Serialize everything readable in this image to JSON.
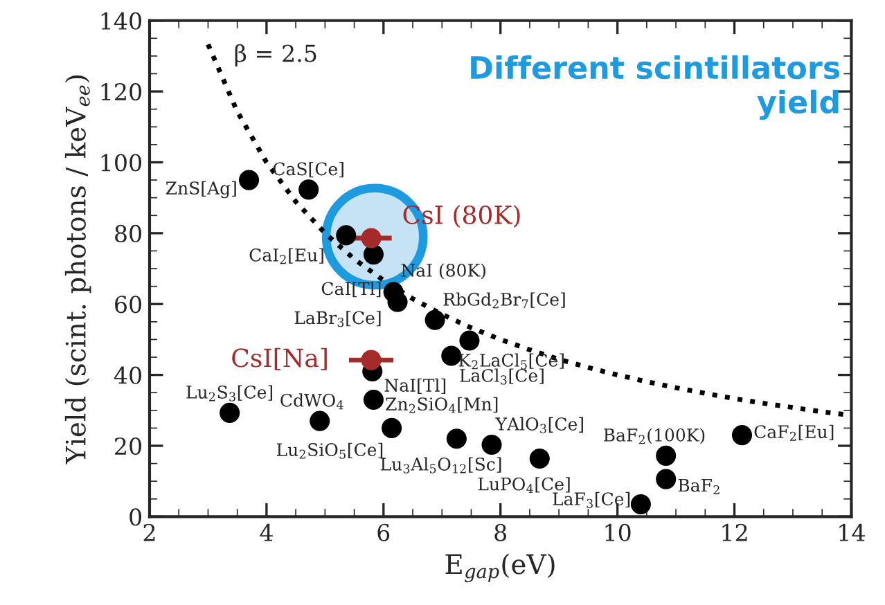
{
  "chart_data": {
    "type": "scatter",
    "xlabel": "E$_{gap}$(eV)",
    "ylabel": "Yield (scint. photons / keV$_{ee}$)",
    "xlim": [
      2,
      14
    ],
    "xticks": [
      2,
      4,
      6,
      8,
      10,
      12,
      14
    ],
    "ylim": [
      0,
      140
    ],
    "yticks": [
      0,
      20,
      40,
      60,
      80,
      100,
      120,
      140
    ],
    "grid": false,
    "legend": false,
    "marker": "circle",
    "series": [
      {
        "type": "line",
        "color": "#000000",
        "line_style": "dotted",
        "marker": "none",
        "x": [
          3,
          3.5,
          4,
          4.5,
          5,
          5.5,
          6,
          6.5,
          7,
          7.5,
          8,
          8.5,
          9,
          9.5,
          10,
          10.5,
          11,
          11.5,
          12,
          12.5,
          13,
          13.5,
          14
        ],
        "values": [
          133.3,
          114.3,
          100,
          88.9,
          80,
          72.7,
          66.7,
          61.5,
          57.1,
          53.3,
          50,
          47.1,
          44.4,
          42.1,
          40,
          38.1,
          36.4,
          34.8,
          33.3,
          32,
          30.8,
          29.6,
          28.6
        ]
      },
      {
        "type": "scatter",
        "color": "#000000",
        "x": [
          3.7,
          4.72,
          5.36,
          5.83,
          6.17,
          6.24,
          6.88,
          7.47,
          7.16,
          5.81,
          5.83,
          3.37,
          4.91,
          6.14,
          7.25,
          7.85,
          8.67,
          10.83,
          10.83,
          10.4,
          12.13
        ],
        "values": [
          95,
          92.3,
          79.4,
          74,
          63.4,
          60.6,
          55.5,
          49.7,
          45.4,
          41,
          33,
          29.3,
          27,
          25,
          22,
          20.3,
          16.4,
          17.2,
          10.6,
          3.5,
          23
        ]
      },
      {
        "type": "scatter",
        "name": "CsI (80K)",
        "color": "#a52a2a",
        "x": [
          5.79
        ],
        "values": [
          78.6
        ],
        "xerrors": [
          0.35
        ]
      },
      {
        "type": "scatter",
        "name": "CsI[Na]",
        "color": "#a52a2a",
        "x": [
          5.79
        ],
        "values": [
          44.2
        ],
        "xerrors": [
          0.38
        ]
      }
    ],
    "annotations": [
      {
        "text": "ZnS[Ag]",
        "x": 3.7,
        "y": 95
      },
      {
        "text": "CaS[Ce]",
        "x": 4.72,
        "y": 92.3
      },
      {
        "text": "CaI$_{2}$[Eu]",
        "x": 5.36,
        "y": 79.4
      },
      {
        "text": "NaI (80K)",
        "x": 5.83,
        "y": 74
      },
      {
        "text": "CaI[Tl]",
        "x": 6.17,
        "y": 63.4
      },
      {
        "text": "LaBr$_{3}$[Ce]",
        "x": 6.24,
        "y": 60.6
      },
      {
        "text": "RbGd$_{2}$Br$_{7}$[Ce]",
        "x": 6.88,
        "y": 55.5
      },
      {
        "text": "K$_{2}$LaCl$_{5}$[Ce]",
        "x": 7.47,
        "y": 49.7
      },
      {
        "text": "LaCl$_{3}$[Ce]",
        "x": 7.16,
        "y": 45.4
      },
      {
        "text": "NaI[Tl]",
        "x": 5.81,
        "y": 41
      },
      {
        "text": "Zn$_{2}$SiO$_{4}$[Mn]",
        "x": 5.83,
        "y": 33
      },
      {
        "text": "Lu$_{2}$S$_{3}$[Ce]",
        "x": 3.37,
        "y": 29.3
      },
      {
        "text": "CdWO$_{4}$",
        "x": 4.91,
        "y": 27
      },
      {
        "text": "Lu$_{2}$SiO$_{5}$[Ce]",
        "x": 6.14,
        "y": 25
      },
      {
        "text": "Lu$_{3}$Al$_{5}$O$_{12}$[Sc]",
        "x": 7.25,
        "y": 22
      },
      {
        "text": "YAlO$_{3}$[Ce]",
        "x": 7.85,
        "y": 20.3
      },
      {
        "text": "LuPO$_{4}$[Ce]",
        "x": 8.67,
        "y": 16.4
      },
      {
        "text": "BaF$_{2}$(100K)",
        "x": 10.83,
        "y": 17.2
      },
      {
        "text": "BaF$_{2}$",
        "x": 10.83,
        "y": 10.6
      },
      {
        "text": "LaF$_{3}$[Ce]",
        "x": 10.4,
        "y": 3.5
      },
      {
        "text": "CaF$_{2}$[Eu]",
        "x": 12.13,
        "y": 23
      },
      "β = 2.5",
      "Different scintillators\nyield"
    ]
  }
}
